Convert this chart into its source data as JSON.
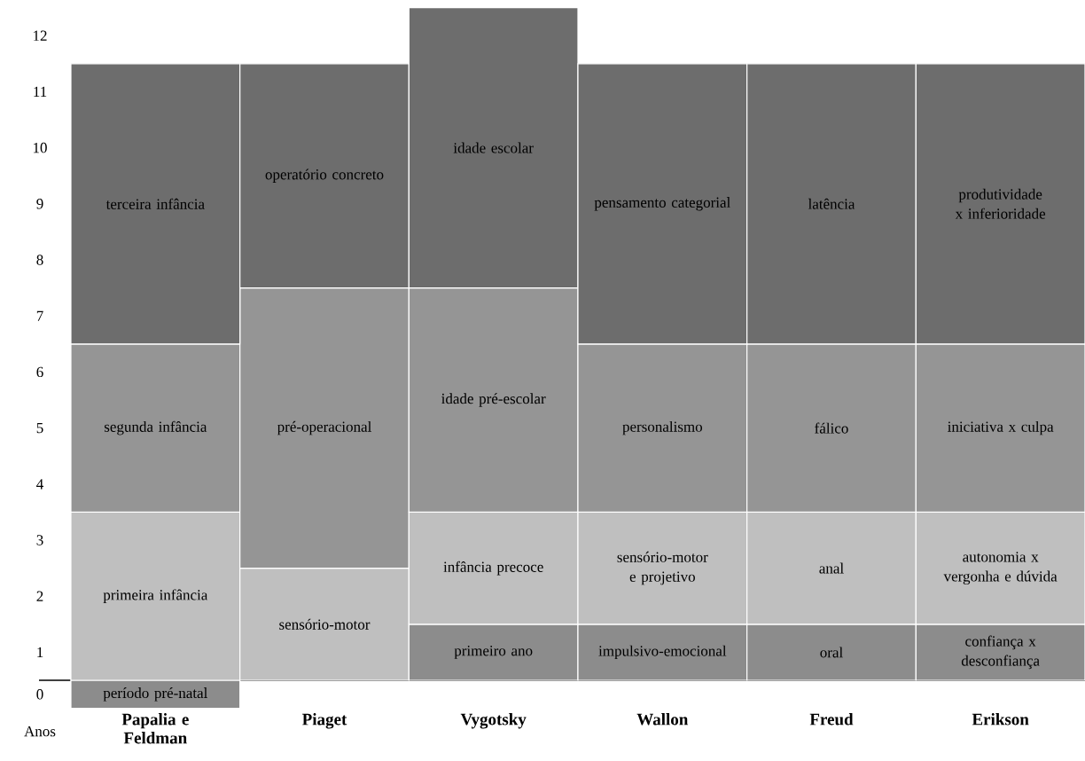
{
  "chart_data": {
    "type": "bar",
    "categories": [
      "Papalia e Feldman",
      "Piaget",
      "Vygotsky",
      "Wallon",
      "Freud",
      "Erikson"
    ],
    "xlabel": "Anos",
    "ylim": [
      -0.5,
      12
    ],
    "yticks": [
      {
        "value": -0.25,
        "label": "0"
      },
      {
        "value": 0.5,
        "label": "1"
      },
      {
        "value": 1.5,
        "label": "2"
      },
      {
        "value": 2.5,
        "label": "3"
      },
      {
        "value": 3.5,
        "label": "4"
      },
      {
        "value": 4.5,
        "label": "5"
      },
      {
        "value": 5.5,
        "label": "6"
      },
      {
        "value": 6.5,
        "label": "7"
      },
      {
        "value": 7.5,
        "label": "8"
      },
      {
        "value": 8.5,
        "label": "9"
      },
      {
        "value": 9.5,
        "label": "10"
      },
      {
        "value": 10.5,
        "label": "11"
      },
      {
        "value": 11.5,
        "label": "12"
      }
    ],
    "grid": false,
    "series": [
      {
        "values": [
          0.5,
          null,
          null,
          null,
          null,
          null
        ],
        "base": [
          -0.5,
          null,
          null,
          null,
          null,
          null
        ],
        "colors": [
          "#8c8c8c",
          null,
          null,
          null,
          null,
          null
        ],
        "value_labels": [
          "período pré-natal",
          null,
          null,
          null,
          null,
          null
        ]
      },
      {
        "values": [
          3,
          2,
          1,
          1,
          1,
          1
        ],
        "base": [
          0,
          0,
          0,
          0,
          0,
          0
        ],
        "colors": [
          "#bfbfbf",
          "#bfbfbf",
          "#8c8c8c",
          "#8c8c8c",
          "#8c8c8c",
          "#8c8c8c"
        ],
        "value_labels": [
          "primeira infância",
          "sensório-motor",
          "primeiro ano",
          "impulsivo-emocional",
          "oral",
          "confiança x desconfiança"
        ]
      },
      {
        "values": [
          3,
          5,
          2,
          2,
          2,
          2
        ],
        "base": [
          3,
          2,
          1,
          1,
          1,
          1
        ],
        "colors": [
          "#959595",
          "#959595",
          "#bfbfbf",
          "#bfbfbf",
          "#bfbfbf",
          "#bfbfbf"
        ],
        "value_labels": [
          "segunda infância",
          "pré-operacional",
          "infância precoce",
          "sensório-motor e projetivo",
          "anal",
          "autonomia x vergonha e dúvida"
        ]
      },
      {
        "values": [
          5,
          4,
          4,
          3,
          3,
          3
        ],
        "base": [
          6,
          7,
          3,
          3,
          3,
          3
        ],
        "colors": [
          "#6d6d6d",
          "#6d6d6d",
          "#959595",
          "#959595",
          "#959595",
          "#959595"
        ],
        "value_labels": [
          "terceira infância",
          "operatório concreto",
          "idade pré-escolar",
          "personalismo",
          "fálico",
          "iniciativa x culpa"
        ]
      },
      {
        "values": [
          null,
          null,
          5,
          5,
          5,
          5
        ],
        "base": [
          null,
          null,
          7,
          6,
          6,
          6
        ],
        "colors": [
          null,
          null,
          "#6d6d6d",
          "#6d6d6d",
          "#6d6d6d",
          "#6d6d6d"
        ],
        "value_labels": [
          null,
          null,
          "idade escolar",
          "pensamento categorial",
          "latência",
          "produtividade x inferioridade"
        ]
      }
    ]
  }
}
